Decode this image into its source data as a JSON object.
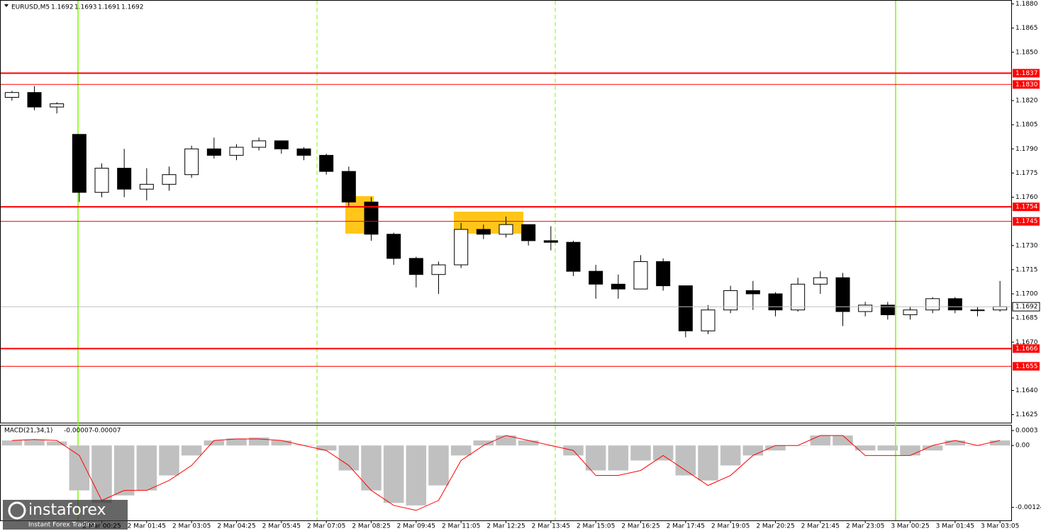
{
  "chart_data": [
    {
      "type": "candlestick",
      "symbol": "EURUSD,M5",
      "quote": [
        1.1692,
        1.1693,
        1.1691,
        1.1692
      ],
      "up_color": "#ffffff",
      "down_color": "#000000",
      "categories": [
        null,
        null,
        null,
        null,
        "2 Mar 00:25",
        null,
        "2 Mar 01:45",
        null,
        "2 Mar 03:05",
        null,
        "2 Mar 04:25",
        null,
        "2 Mar 05:45",
        null,
        "2 Mar 07:05",
        null,
        "2 Mar 08:25",
        null,
        "2 Mar 09:45",
        null,
        "2 Mar 11:05",
        null,
        "2 Mar 12:25",
        null,
        "2 Mar 13:45",
        null,
        "2 Mar 15:05",
        null,
        "2 Mar 16:25",
        null,
        "2 Mar 17:45",
        null,
        "2 Mar 19:05",
        null,
        "2 Mar 20:25",
        null,
        "2 Mar 21:45",
        null,
        "2 Mar 23:05",
        null,
        "3 Mar 00:25",
        null,
        "3 Mar 01:45",
        null,
        "3 Mar 03:05"
      ],
      "open": [
        1.1822,
        1.1825,
        1.1816,
        1.1799,
        1.1763,
        1.1778,
        1.1765,
        1.1768,
        1.1774,
        1.179,
        1.1786,
        1.1791,
        1.1795,
        1.179,
        1.1786,
        1.1776,
        1.1757,
        1.1737,
        1.1722,
        1.1712,
        1.1718,
        1.174,
        1.1737,
        1.1743,
        1.1733,
        1.1732,
        1.1714,
        1.1706,
        1.1703,
        1.172,
        1.1705,
        1.1677,
        1.169,
        1.1702,
        1.17,
        1.169,
        1.1706,
        1.171,
        1.1689,
        1.1693,
        1.1687,
        1.169,
        1.1697,
        1.169,
        1.169
      ],
      "high": [
        1.1826,
        1.1829,
        1.1819,
        1.1799,
        1.1781,
        1.179,
        1.1778,
        1.1779,
        1.1792,
        1.1797,
        1.1793,
        1.1797,
        1.1795,
        1.1791,
        1.1787,
        1.1779,
        1.176,
        1.1738,
        1.1723,
        1.172,
        1.1744,
        1.1743,
        1.1748,
        1.1743,
        1.1742,
        1.1733,
        1.1718,
        1.1712,
        1.1724,
        1.1722,
        1.1705,
        1.1693,
        1.1705,
        1.1708,
        1.1701,
        1.171,
        1.1714,
        1.1713,
        1.1695,
        1.1695,
        1.1692,
        1.1698,
        1.1698,
        1.1692,
        1.1708
      ],
      "low": [
        1.182,
        1.1814,
        1.1812,
        1.1757,
        1.176,
        1.176,
        1.1758,
        1.1764,
        1.1772,
        1.1784,
        1.1783,
        1.1789,
        1.1787,
        1.1783,
        1.1774,
        1.1754,
        1.1733,
        1.1718,
        1.1704,
        1.17,
        1.1716,
        1.1734,
        1.1735,
        1.173,
        1.1727,
        1.1711,
        1.1697,
        1.1697,
        1.1703,
        1.1702,
        1.1673,
        1.1675,
        1.1688,
        1.169,
        1.1686,
        1.1689,
        1.17,
        1.168,
        1.1686,
        1.1684,
        1.1684,
        1.1688,
        1.1688,
        1.1686,
        1.1689
      ],
      "close": [
        1.1825,
        1.1816,
        1.1818,
        1.1763,
        1.1778,
        1.1765,
        1.1768,
        1.1774,
        1.179,
        1.1786,
        1.1791,
        1.1795,
        1.179,
        1.1786,
        1.1776,
        1.1757,
        1.1737,
        1.1722,
        1.1712,
        1.1718,
        1.174,
        1.1737,
        1.1743,
        1.1733,
        1.1732,
        1.1714,
        1.1706,
        1.1703,
        1.172,
        1.1705,
        1.1677,
        1.169,
        1.1702,
        1.17,
        1.169,
        1.1706,
        1.171,
        1.1689,
        1.1693,
        1.1687,
        1.169,
        1.1697,
        1.169,
        1.169,
        1.1692
      ],
      "ylim": [
        1.162,
        1.1882
      ],
      "yticks": [
        {
          "value": 1.188,
          "label": "1.1880"
        },
        1.1865,
        {
          "value": 1.185,
          "label": "1.1850"
        },
        {
          "value": 1.182,
          "label": "1.1820"
        },
        1.1805,
        {
          "value": 1.179,
          "label": "1.1790"
        },
        1.1775,
        {
          "value": 1.176,
          "label": "1.1760"
        },
        {
          "value": 1.173,
          "label": "1.1730"
        },
        1.1715,
        {
          "value": 1.17,
          "label": "1.1700"
        },
        1.1685,
        {
          "value": 1.167,
          "label": "1.1670"
        },
        {
          "value": 1.164,
          "label": "1.1640"
        },
        1.1625
      ],
      "levels": [
        1.1837,
        {
          "value": 1.183,
          "label": "1.1830"
        },
        1.1754,
        1.1745,
        1.1666,
        1.1655
      ],
      "level_color": "#ff0000",
      "current_price": 1.1692
    },
    {
      "type": "macd",
      "name": "MACD(21,34,1)",
      "readout": [
        -7e-05,
        -7e-05
      ],
      "series": [
        {
          "color": "#c0c0c0",
          "values": [
            0.0001,
            0.00012,
            8e-05,
            -0.0009,
            -0.00115,
            -0.001,
            -0.0009,
            -0.0006,
            -0.0002,
            0.0001,
            0.00014,
            0.00016,
            0.0001,
            1e-05,
            -0.0001,
            -0.0005,
            -0.0009,
            -0.00115,
            -0.0012,
            -0.0008,
            -0.0002,
            0.0001,
            0.0002,
            0.0001,
            0,
            -0.0002,
            -0.0005,
            -0.0005,
            -0.0003,
            -0.0003,
            -0.0006,
            -0.0007,
            -0.0004,
            -0.0002,
            -0.0001,
            0,
            0.0002,
            0.0002,
            -0.0001,
            -0.0001,
            -0.0002,
            -0.0001,
            0.0001,
            0,
            0.0001
          ]
        },
        {
          "color": "#ff0000",
          "values": [
            0.0001,
            0.00012,
            0.0001,
            -0.0002,
            -0.0011,
            -0.0009,
            -0.0009,
            -0.0007,
            -0.0004,
            0.0001,
            0.00013,
            0.00013,
            0.0001,
            0,
            -0.0001,
            -0.0004,
            -0.0009,
            -0.0012,
            -0.0013,
            -0.0011,
            -0.0003,
            0,
            0.0002,
            0.0001,
            0,
            -0.0001,
            -0.0006,
            -0.0006,
            -0.0005,
            -0.0002,
            -0.0005,
            -0.0008,
            -0.0006,
            -0.0002,
            0,
            0,
            0.0002,
            0.0002,
            -0.0002,
            -0.0002,
            -0.0002,
            0,
            0.0001,
            0,
            0.0001
          ]
        }
      ],
      "ylim": [
        -0.0015,
        0.0004
      ],
      "yticks": [
        0.0003,
        {
          "value": 0,
          "label": "0.00"
        },
        -0.00124
      ]
    }
  ],
  "logo": {
    "name": "instaforex",
    "tagline": "Instant Forex Trading"
  }
}
